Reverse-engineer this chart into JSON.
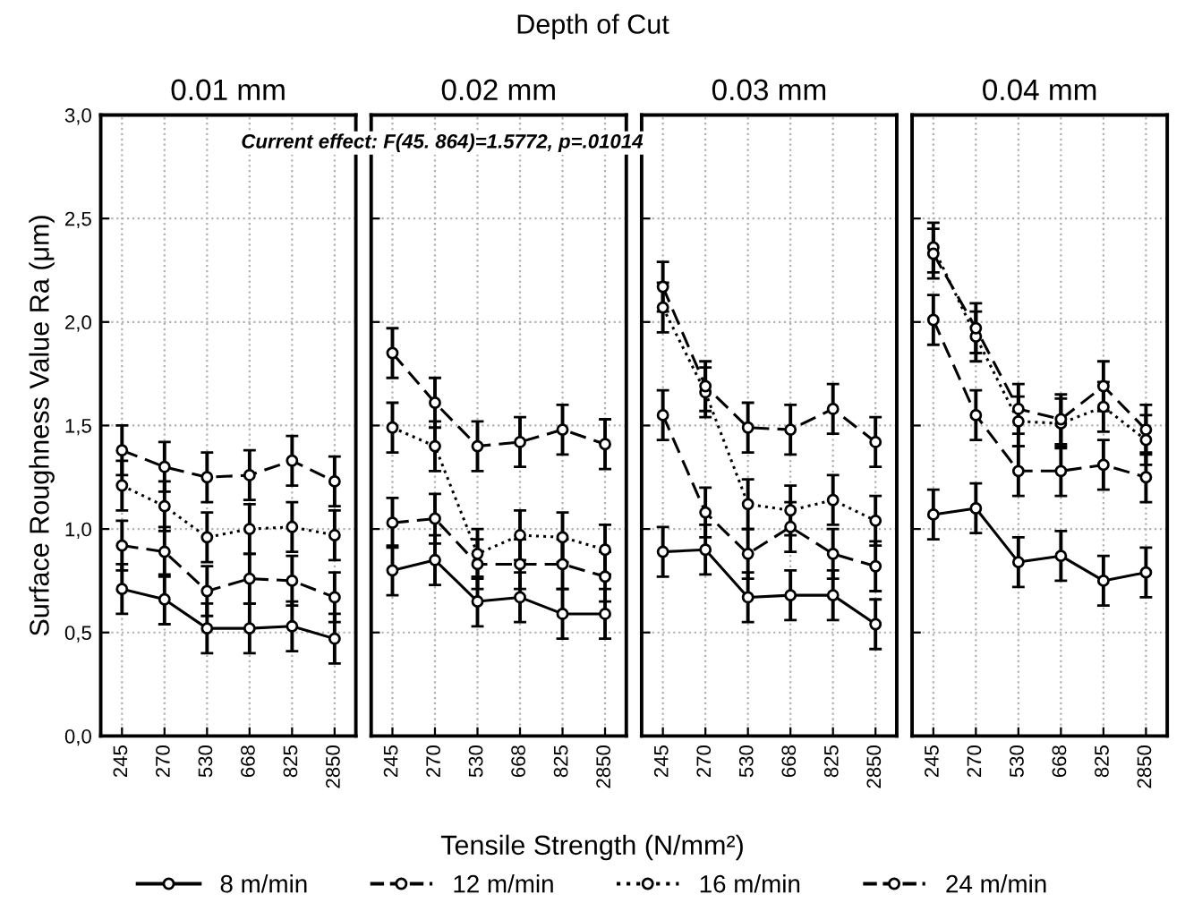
{
  "chart_data": [
    {
      "type": "line",
      "title": "0.01 mm",
      "xlabel": "Tensile Strength (N/mm²)",
      "ylabel": "Surface Roughness Value Ra (μm)",
      "annotations": [
        "Current effect: F(45. 864)=1.5772, p=.01014"
      ],
      "categories": [
        "245",
        "270",
        "530",
        "668",
        "825",
        "2850"
      ],
      "ylim": [
        0,
        3
      ],
      "yticks": [
        {
          "value": 0,
          "label": "0,0"
        },
        {
          "value": 0.5,
          "label": "0,5"
        },
        {
          "value": 1,
          "label": "1,0"
        },
        {
          "value": 1.5,
          "label": "1,5"
        },
        {
          "value": 2,
          "label": "2,0"
        },
        {
          "value": 2.5,
          "label": "2,5"
        },
        {
          "value": 3,
          "label": "3,0"
        }
      ],
      "grid": true,
      "marker": "circle",
      "legend": "bottom",
      "series": [
        {
          "name": "8 m/min",
          "color": "#000000",
          "line_style": "solid",
          "values": [
            0.71,
            0.66,
            0.52,
            0.52,
            0.53,
            0.47
          ],
          "errors": [
            0.12,
            0.12,
            0.12,
            0.12,
            0.12,
            0.12
          ]
        },
        {
          "name": "12 m/min",
          "color": "#000000",
          "line_style": "dashed",
          "values": [
            0.92,
            0.89,
            0.7,
            0.76,
            0.75,
            0.67
          ],
          "errors": [
            0.12,
            0.12,
            0.12,
            0.12,
            0.12,
            0.12
          ]
        },
        {
          "name": "16 m/min",
          "color": "#000000",
          "line_style": "dotted",
          "values": [
            1.21,
            1.11,
            0.96,
            1.0,
            1.01,
            0.97
          ],
          "errors": [
            0.12,
            0.12,
            0.12,
            0.12,
            0.12,
            0.12
          ]
        },
        {
          "name": "24 m/min",
          "color": "#000000",
          "line_style": "dashed",
          "values": [
            1.38,
            1.3,
            1.25,
            1.26,
            1.33,
            1.23
          ],
          "errors": [
            0.12,
            0.12,
            0.12,
            0.12,
            0.12,
            0.12
          ]
        }
      ]
    },
    {
      "type": "line",
      "title": "0.02 mm",
      "subtitle": "Depth of Cut",
      "categories": [
        "245",
        "270",
        "530",
        "668",
        "825",
        "2850"
      ],
      "ylim": [
        0,
        3
      ],
      "yticks": [
        0,
        0.5,
        1,
        1.5,
        2,
        2.5,
        3
      ],
      "grid": true,
      "marker": "circle",
      "tick_labels": "x",
      "series": [
        {
          "color": "#000000",
          "line_style": "solid",
          "values": [
            0.8,
            0.85,
            0.65,
            0.67,
            0.59,
            0.59
          ],
          "errors": [
            0.12,
            0.12,
            0.12,
            0.12,
            0.12,
            0.12
          ]
        },
        {
          "color": "#000000",
          "line_style": "dashed",
          "values": [
            1.03,
            1.05,
            0.83,
            0.83,
            0.83,
            0.77
          ],
          "errors": [
            0.12,
            0.12,
            0.12,
            0.12,
            0.12,
            0.12
          ]
        },
        {
          "color": "#000000",
          "line_style": "dotted",
          "values": [
            1.49,
            1.4,
            0.88,
            0.97,
            0.96,
            0.9
          ],
          "errors": [
            0.12,
            0.12,
            0.12,
            0.12,
            0.12,
            0.12
          ]
        },
        {
          "color": "#000000",
          "line_style": "dashed",
          "values": [
            1.85,
            1.61,
            1.4,
            1.42,
            1.48,
            1.41
          ],
          "errors": [
            0.12,
            0.12,
            0.12,
            0.12,
            0.12,
            0.12
          ]
        }
      ]
    },
    {
      "type": "line",
      "title": "0.03 mm",
      "categories": [
        "245",
        "270",
        "530",
        "668",
        "825",
        "2850"
      ],
      "ylim": [
        0,
        3
      ],
      "yticks": [
        0,
        0.5,
        1,
        1.5,
        2,
        2.5,
        3
      ],
      "grid": true,
      "marker": "circle",
      "tick_labels": "x",
      "series": [
        {
          "color": "#000000",
          "line_style": "solid",
          "values": [
            0.89,
            0.9,
            0.67,
            0.68,
            0.68,
            0.54
          ],
          "errors": [
            0.12,
            0.12,
            0.12,
            0.12,
            0.12,
            0.12
          ]
        },
        {
          "color": "#000000",
          "line_style": "dashed",
          "values": [
            1.55,
            1.08,
            0.88,
            1.01,
            0.88,
            0.82
          ],
          "errors": [
            0.12,
            0.12,
            0.12,
            0.12,
            0.12,
            0.12
          ]
        },
        {
          "color": "#000000",
          "line_style": "dotted",
          "values": [
            2.07,
            1.66,
            1.12,
            1.09,
            1.14,
            1.04
          ],
          "errors": [
            0.12,
            0.12,
            0.12,
            0.12,
            0.12,
            0.12
          ]
        },
        {
          "color": "#000000",
          "line_style": "dashed",
          "values": [
            2.17,
            1.69,
            1.49,
            1.48,
            1.58,
            1.42
          ],
          "errors": [
            0.12,
            0.12,
            0.12,
            0.12,
            0.12,
            0.12
          ]
        }
      ]
    },
    {
      "type": "line",
      "title": "0.04 mm",
      "categories": [
        "245",
        "270",
        "530",
        "668",
        "825",
        "2850"
      ],
      "ylim": [
        0,
        3
      ],
      "yticks": [
        0,
        0.5,
        1,
        1.5,
        2,
        2.5,
        3
      ],
      "grid": true,
      "marker": "circle",
      "tick_labels": "x",
      "series": [
        {
          "color": "#000000",
          "line_style": "solid",
          "values": [
            1.07,
            1.1,
            0.84,
            0.87,
            0.75,
            0.79
          ],
          "errors": [
            0.12,
            0.12,
            0.12,
            0.12,
            0.12,
            0.12
          ]
        },
        {
          "color": "#000000",
          "line_style": "dashed",
          "values": [
            2.01,
            1.55,
            1.28,
            1.28,
            1.31,
            1.25
          ],
          "errors": [
            0.12,
            0.12,
            0.12,
            0.12,
            0.12,
            0.12
          ]
        },
        {
          "color": "#000000",
          "line_style": "dotted",
          "values": [
            2.36,
            1.93,
            1.52,
            1.51,
            1.59,
            1.43
          ],
          "errors": [
            0.12,
            0.12,
            0.12,
            0.12,
            0.12,
            0.12
          ]
        },
        {
          "color": "#000000",
          "line_style": "dashed",
          "values": [
            2.33,
            1.97,
            1.58,
            1.53,
            1.69,
            1.48
          ],
          "errors": [
            0.12,
            0.12,
            0.12,
            0.12,
            0.12,
            0.12
          ]
        }
      ]
    }
  ]
}
